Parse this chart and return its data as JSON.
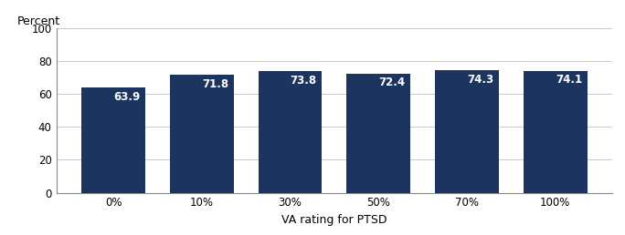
{
  "categories": [
    "0%",
    "10%",
    "30%",
    "50%",
    "70%",
    "100%"
  ],
  "values": [
    63.9,
    71.8,
    73.8,
    72.4,
    74.3,
    74.1
  ],
  "bar_color": "#1b3560",
  "ylabel": "Percent",
  "xlabel": "VA rating for PTSD",
  "ylim": [
    0,
    100
  ],
  "yticks": [
    0,
    20,
    40,
    60,
    80,
    100
  ],
  "bar_width": 0.72,
  "label_fontsize": 8.5,
  "axis_label_fontsize": 9,
  "tick_fontsize": 8.5,
  "label_color": "white",
  "background_color": "#ffffff",
  "grid_color": "#c8c8c8"
}
